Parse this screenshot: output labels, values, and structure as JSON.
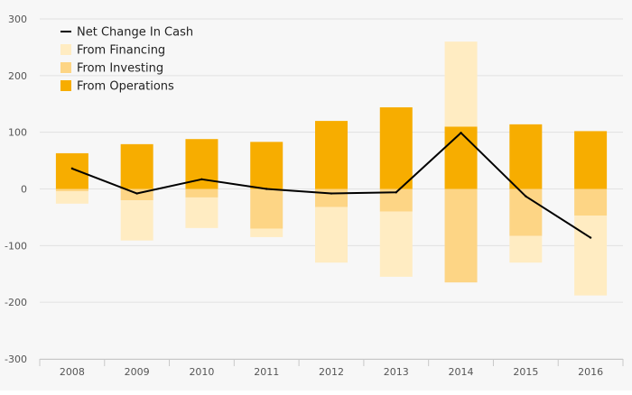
{
  "chart_data": {
    "type": "bar",
    "stacked": true,
    "categories": [
      "2008",
      "2009",
      "2010",
      "2011",
      "2012",
      "2013",
      "2014",
      "2015",
      "2016"
    ],
    "ylim": [
      -300,
      300
    ],
    "yticks": [
      300,
      200,
      100,
      0,
      -100,
      -200,
      -300
    ],
    "ytick_labels": [
      "300",
      "200",
      "100",
      "0",
      "-100",
      "-200",
      "-300"
    ],
    "grid": true,
    "legend_position": "top-left",
    "series": [
      {
        "name": "From Operations",
        "kind": "bar",
        "color": "#f7ad00",
        "values": [
          63,
          79,
          88,
          83,
          120,
          144,
          110,
          114,
          102
        ]
      },
      {
        "name": "From Investing",
        "kind": "bar",
        "color": "#fdd585",
        "values": [
          -4,
          -20,
          -15,
          -70,
          -32,
          -40,
          -165,
          -83,
          -47
        ]
      },
      {
        "name": "From Financing",
        "kind": "bar",
        "color": "#ffecc2",
        "values": [
          -22,
          -71,
          -54,
          -15,
          -98,
          -115,
          150,
          -47,
          -141
        ]
      },
      {
        "name": "Net Change In Cash",
        "kind": "line",
        "color": "#000000",
        "values": [
          36,
          -8,
          17,
          0,
          -8,
          -6,
          99,
          -13,
          -86
        ]
      }
    ],
    "legend": [
      {
        "label": "Net Change In Cash",
        "symbol": "line",
        "color": "#000000"
      },
      {
        "label": "From Financing",
        "symbol": "square",
        "color": "#ffecc2"
      },
      {
        "label": "From Investing",
        "symbol": "square",
        "color": "#fdd585"
      },
      {
        "label": "From Operations",
        "symbol": "square",
        "color": "#f7ad00"
      }
    ]
  }
}
